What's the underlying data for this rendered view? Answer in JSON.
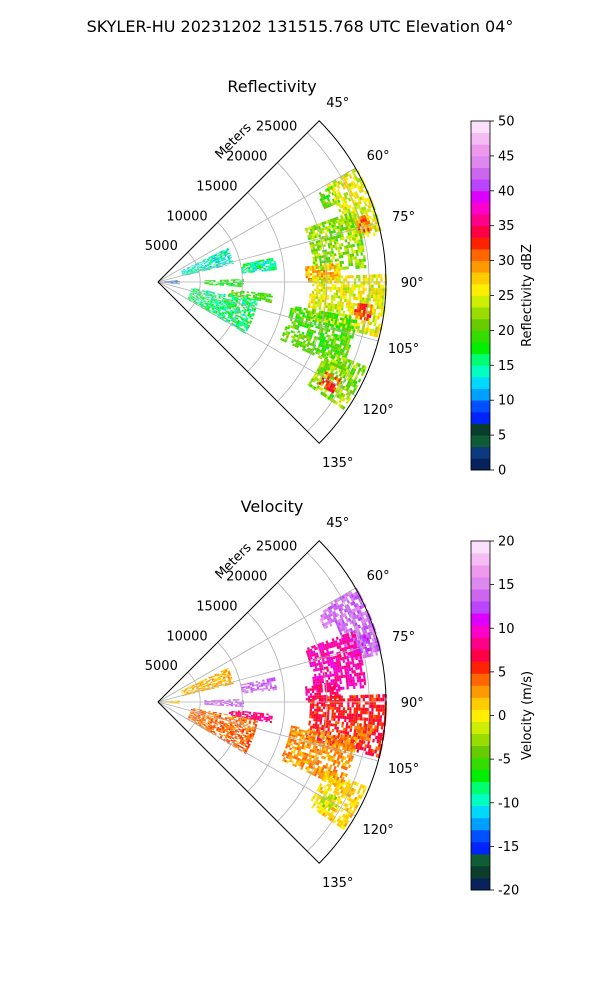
{
  "figure": {
    "title": "SKYLER-HU  20231202  131515.768 UTC Elevation 04°"
  },
  "chart_data": [
    {
      "type": "heatmap",
      "title": "Reflectivity",
      "projection": "polar-sector",
      "theta_ticks": [
        "45°",
        "60°",
        "75°",
        "90°",
        "105°",
        "120°",
        "135°"
      ],
      "theta_range_deg": [
        45,
        135
      ],
      "radial_label": "Meters",
      "r_ticks": [
        5000,
        10000,
        15000,
        20000,
        25000
      ],
      "r_max": 27000,
      "grid": true,
      "colorbar": {
        "label": "Reflectivity dBZ",
        "ticks": [
          0,
          5,
          10,
          15,
          20,
          25,
          30,
          35,
          40,
          45,
          50
        ],
        "range": [
          0,
          50
        ],
        "colors": [
          "#08235b",
          "#0b3a7e",
          "#0f5d36",
          "#0a3d2b",
          "#0024ff",
          "#0050ff",
          "#00a0ff",
          "#00d8ff",
          "#00ffc0",
          "#00ff70",
          "#00ee00",
          "#33dd00",
          "#66cc00",
          "#99dd00",
          "#ccee00",
          "#ffee00",
          "#ffcc00",
          "#ff9900",
          "#ff6600",
          "#ff2200",
          "#ff0044",
          "#ff0088",
          "#ff00cc",
          "#dd00ff",
          "#bb44ff",
          "#cc66ee",
          "#dd88ee",
          "#ee99ee",
          "#f4bbf4",
          "#fbe0fb"
        ]
      },
      "echo_regions": [
        {
          "theta": [
            61,
            66
          ],
          "r": [
            21500,
            23500
          ],
          "value": 20
        },
        {
          "theta": [
            60,
            78
          ],
          "r": [
            23000,
            27000
          ],
          "value": 25
        },
        {
          "theta": [
            70,
            86
          ],
          "r": [
            18500,
            24500
          ],
          "value": 22
        },
        {
          "theta": [
            84,
            90
          ],
          "r": [
            17500,
            21500
          ],
          "value": 28
        },
        {
          "theta": [
            88,
            104
          ],
          "r": [
            18000,
            27000
          ],
          "value": 25
        },
        {
          "theta": [
            96,
            100
          ],
          "r": [
            23500,
            25500
          ],
          "value": 32
        },
        {
          "theta": [
            72,
            76
          ],
          "r": [
            24500,
            26000
          ],
          "value": 30
        },
        {
          "theta": [
            100,
            115
          ],
          "r": [
            16000,
            24000
          ],
          "value": 20
        },
        {
          "theta": [
            88,
            93
          ],
          "r": [
            5500,
            10000
          ],
          "value": 18
        },
        {
          "theta": [
            96,
            100
          ],
          "r": [
            8500,
            13500
          ],
          "value": 20
        },
        {
          "theta": [
            112,
            124
          ],
          "r": [
            21500,
            26500
          ],
          "value": 22
        },
        {
          "theta": [
            118,
            122
          ],
          "r": [
            22500,
            24500
          ],
          "value": 32
        },
        {
          "theta": [
            78,
            84
          ],
          "r": [
            10000,
            14000
          ],
          "value": 15
        },
        {
          "theta": [
            64,
            76
          ],
          "r": [
            3000,
            9000
          ],
          "value": 14
        },
        {
          "theta": [
            100,
            120
          ],
          "r": [
            4000,
            12000
          ],
          "value": 16
        },
        {
          "theta": [
            85,
            95
          ],
          "r": [
            500,
            2500
          ],
          "value": 8
        }
      ]
    },
    {
      "type": "heatmap",
      "title": "Velocity",
      "projection": "polar-sector",
      "theta_ticks": [
        "45°",
        "60°",
        "75°",
        "90°",
        "105°",
        "120°",
        "135°"
      ],
      "theta_range_deg": [
        45,
        135
      ],
      "radial_label": "Meters",
      "r_ticks": [
        5000,
        10000,
        15000,
        20000,
        25000
      ],
      "r_max": 27000,
      "grid": true,
      "colorbar": {
        "label": "Velocity (m/s)",
        "ticks": [
          -20,
          -15,
          -10,
          -5,
          0,
          5,
          10,
          15,
          20
        ],
        "range": [
          -20,
          20
        ],
        "colors": [
          "#08235b",
          "#0a3d2b",
          "#0f5d36",
          "#0024ff",
          "#0050ff",
          "#00a0ff",
          "#00d8ff",
          "#00ffc0",
          "#00ff70",
          "#00ee00",
          "#33dd00",
          "#66cc00",
          "#99dd00",
          "#ccee00",
          "#ffee00",
          "#ffcc00",
          "#ff9900",
          "#ff6600",
          "#ff2200",
          "#ff0044",
          "#ff0088",
          "#ff00cc",
          "#dd00ff",
          "#bb44ff",
          "#cc66ee",
          "#dd88ee",
          "#ee99ee",
          "#f4bbf4",
          "#fbe0fb"
        ]
      },
      "echo_regions": [
        {
          "theta": [
            61,
            66
          ],
          "r": [
            21500,
            23500
          ],
          "value": 15
        },
        {
          "theta": [
            60,
            78
          ],
          "r": [
            23000,
            27000
          ],
          "value": 14
        },
        {
          "theta": [
            70,
            86
          ],
          "r": [
            18500,
            24500
          ],
          "value": 9
        },
        {
          "theta": [
            84,
            90
          ],
          "r": [
            17500,
            21500
          ],
          "value": 8
        },
        {
          "theta": [
            88,
            104
          ],
          "r": [
            18000,
            27000
          ],
          "value": 6
        },
        {
          "theta": [
            96,
            100
          ],
          "r": [
            23500,
            25500
          ],
          "value": 4
        },
        {
          "theta": [
            72,
            76
          ],
          "r": [
            24500,
            26000
          ],
          "value": 13
        },
        {
          "theta": [
            100,
            115
          ],
          "r": [
            16000,
            24000
          ],
          "value": 3
        },
        {
          "theta": [
            88,
            93
          ],
          "r": [
            5500,
            10000
          ],
          "value": 14
        },
        {
          "theta": [
            96,
            100
          ],
          "r": [
            8500,
            13500
          ],
          "value": 8
        },
        {
          "theta": [
            112,
            124
          ],
          "r": [
            21500,
            26500
          ],
          "value": 1
        },
        {
          "theta": [
            118,
            122
          ],
          "r": [
            22500,
            24500
          ],
          "value": -2
        },
        {
          "theta": [
            78,
            84
          ],
          "r": [
            10000,
            14000
          ],
          "value": 14
        },
        {
          "theta": [
            64,
            76
          ],
          "r": [
            3000,
            9000
          ],
          "value": 2
        },
        {
          "theta": [
            100,
            120
          ],
          "r": [
            4000,
            12000
          ],
          "value": 4
        },
        {
          "theta": [
            85,
            95
          ],
          "r": [
            500,
            2500
          ],
          "value": 1
        }
      ]
    }
  ]
}
